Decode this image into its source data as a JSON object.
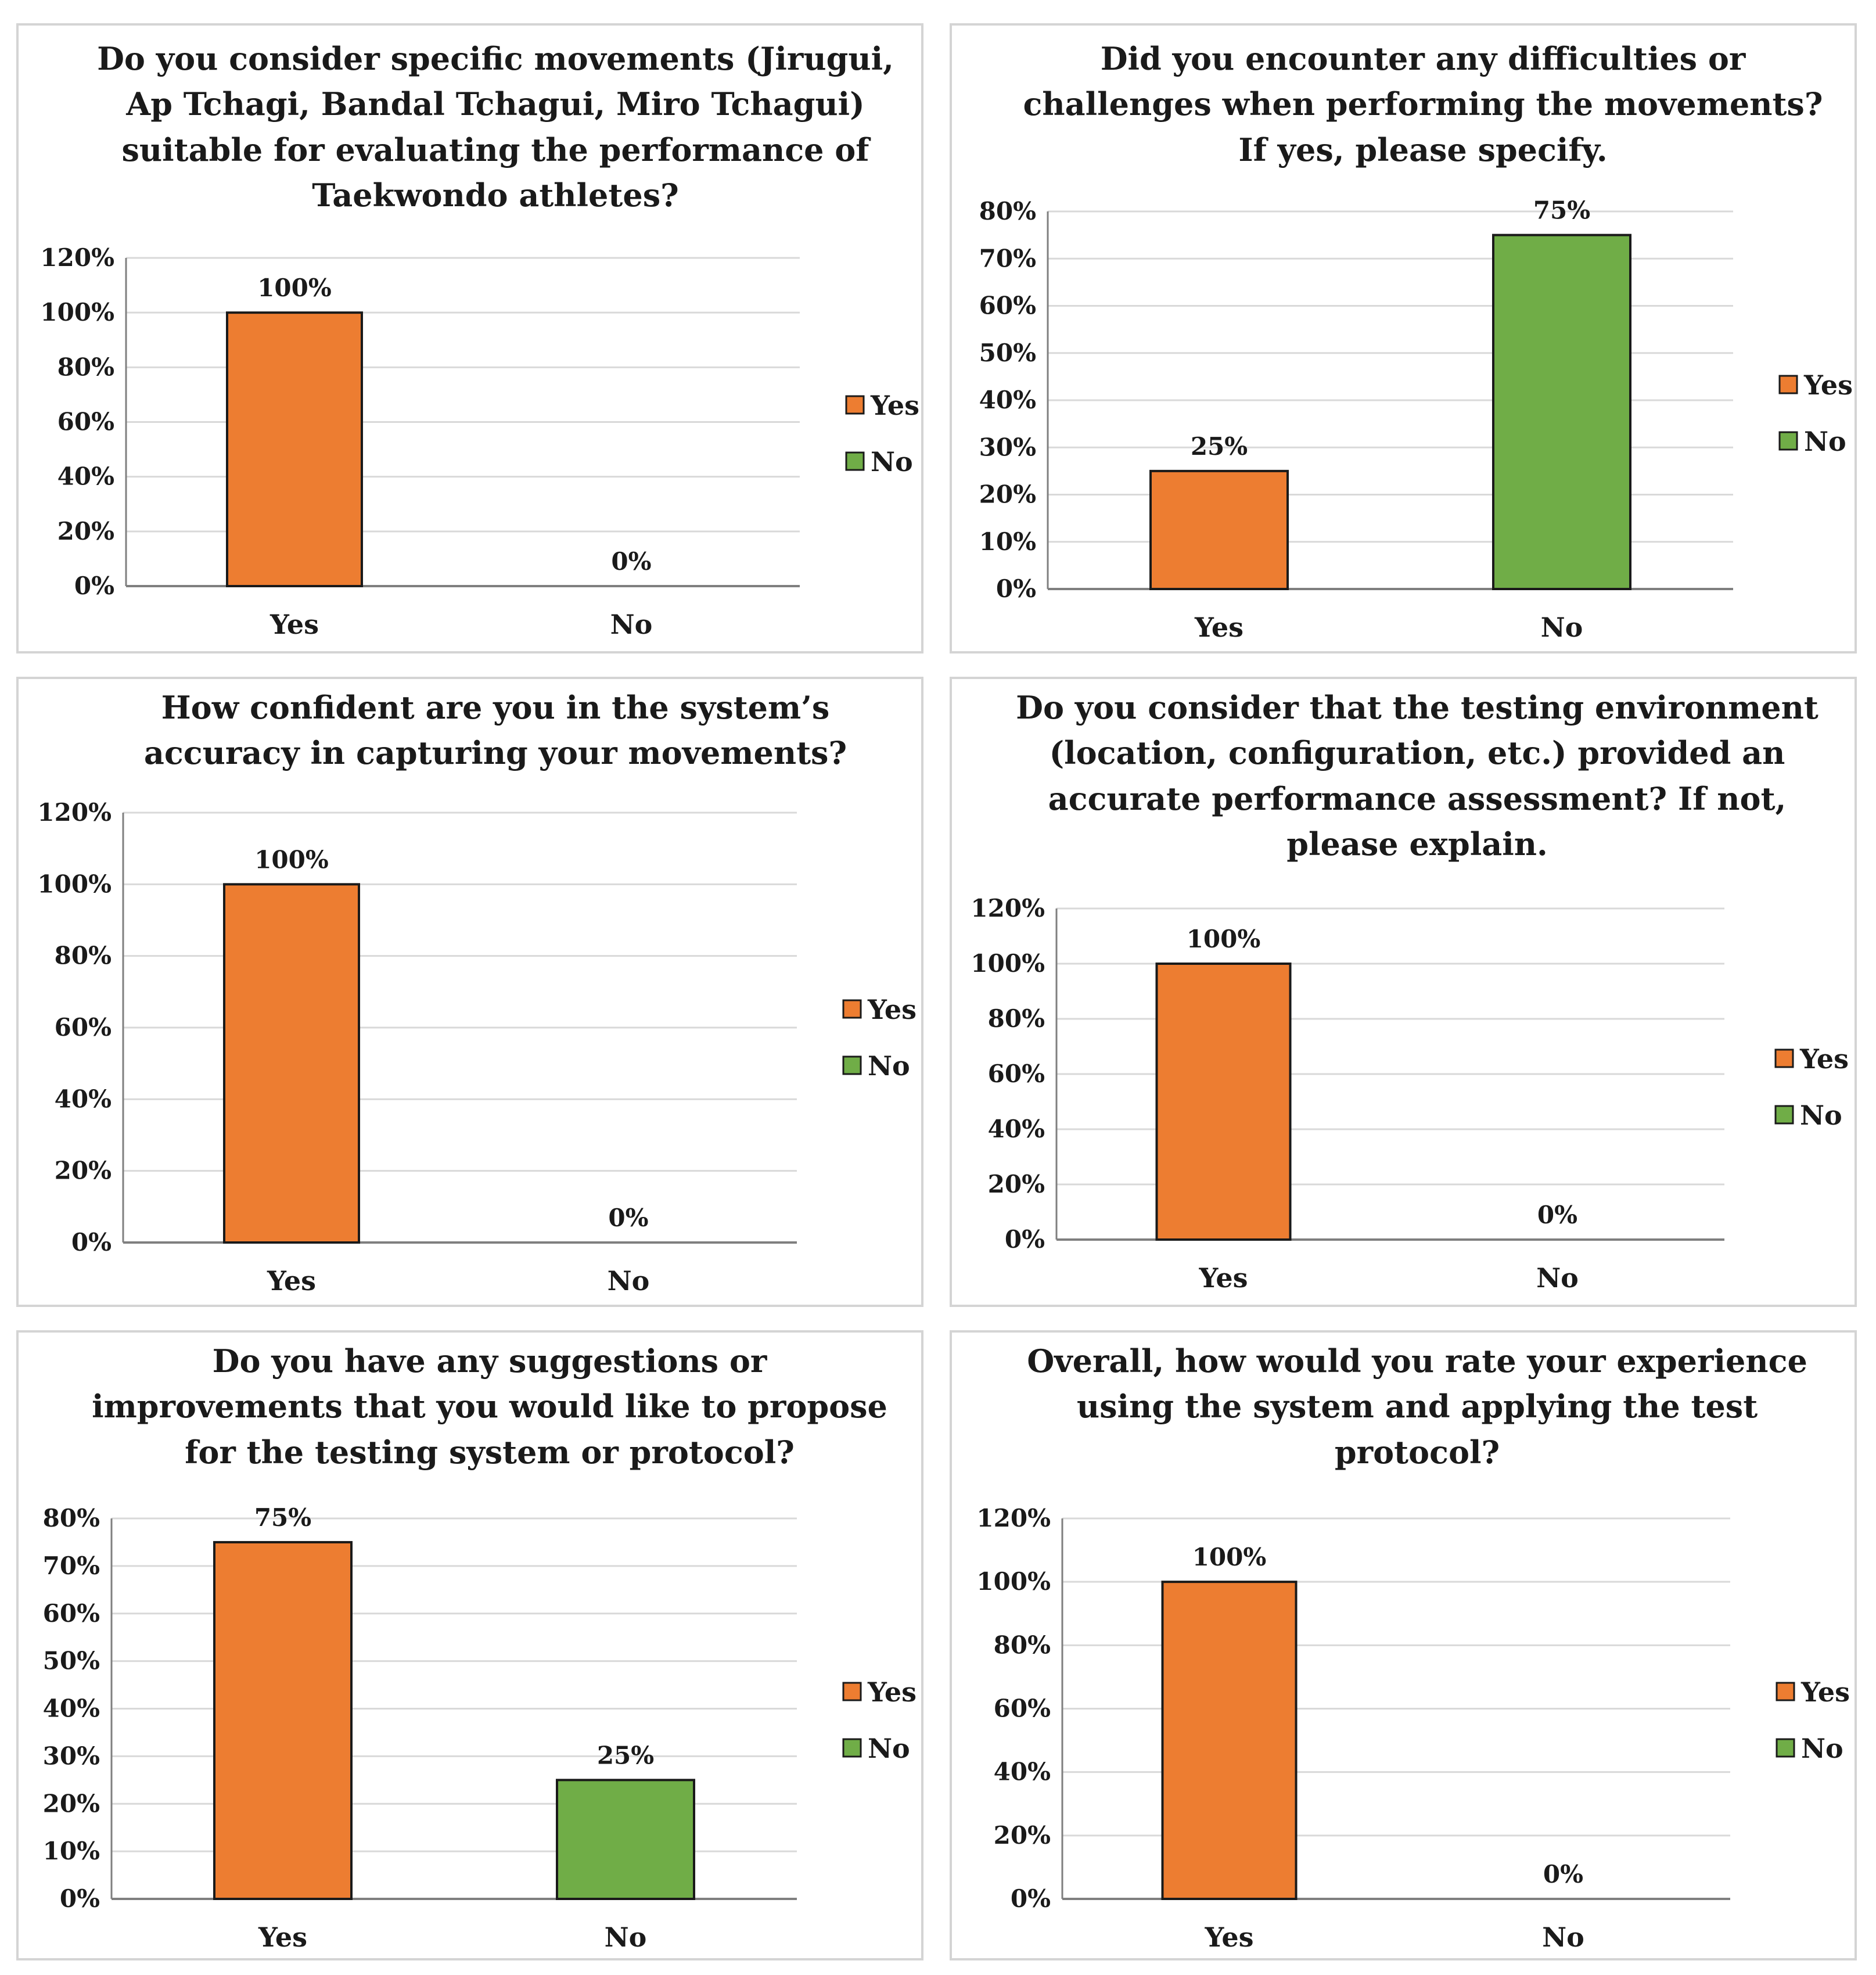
{
  "colors": {
    "yes": "#ED7D31",
    "no": "#70AD47",
    "grid": "#d9d9d9",
    "axis": "#7f7f7f",
    "outline": "#1a1a1a"
  },
  "chart_data": [
    {
      "type": "bar",
      "title": "Do you consider specific movements (Jirugui,\nAp Tchagi, Bandal Tchagui, Miro Tchagui)\nsuitable for evaluating the performance of\nTaekwondo athletes?",
      "categories": [
        "Yes",
        "No"
      ],
      "values": [
        100,
        0
      ],
      "value_labels": [
        "100%",
        "0%"
      ],
      "ylim": [
        0,
        120
      ],
      "yticks": [
        0,
        20,
        40,
        60,
        80,
        100,
        120
      ],
      "ytick_labels": [
        "0%",
        "20%",
        "40%",
        "60%",
        "80%",
        "100%",
        "120%"
      ],
      "legend": [
        "Yes",
        "No"
      ],
      "legend_position": "right",
      "grid": true
    },
    {
      "type": "bar",
      "title": "Did you encounter any difficulties or\nchallenges when performing the movements?\nIf yes, please specify.",
      "categories": [
        "Yes",
        "No"
      ],
      "values": [
        25,
        75
      ],
      "value_labels": [
        "25%",
        "75%"
      ],
      "ylim": [
        0,
        80
      ],
      "yticks": [
        0,
        10,
        20,
        30,
        40,
        50,
        60,
        70,
        80
      ],
      "ytick_labels": [
        "0%",
        "10%",
        "20%",
        "30%",
        "40%",
        "50%",
        "60%",
        "70%",
        "80%"
      ],
      "legend": [
        "Yes",
        "No"
      ],
      "legend_position": "right",
      "grid": true
    },
    {
      "type": "bar",
      "title": "How confident are you in the system’s\naccuracy in capturing your movements?",
      "categories": [
        "Yes",
        "No"
      ],
      "values": [
        100,
        0
      ],
      "value_labels": [
        "100%",
        "0%"
      ],
      "ylim": [
        0,
        120
      ],
      "yticks": [
        0,
        20,
        40,
        60,
        80,
        100,
        120
      ],
      "ytick_labels": [
        "0%",
        "20%",
        "40%",
        "60%",
        "80%",
        "100%",
        "120%"
      ],
      "legend": [
        "Yes",
        "No"
      ],
      "legend_position": "right",
      "grid": true
    },
    {
      "type": "bar",
      "title": "Do you consider that the testing environment\n(location, configuration, etc.) provided an\naccurate performance assessment? If not,\nplease explain.",
      "categories": [
        "Yes",
        "No"
      ],
      "values": [
        100,
        0
      ],
      "value_labels": [
        "100%",
        "0%"
      ],
      "ylim": [
        0,
        120
      ],
      "yticks": [
        0,
        20,
        40,
        60,
        80,
        100,
        120
      ],
      "ytick_labels": [
        "0%",
        "20%",
        "40%",
        "60%",
        "80%",
        "100%",
        "120%"
      ],
      "legend": [
        "Yes",
        "No"
      ],
      "legend_position": "right",
      "grid": true
    },
    {
      "type": "bar",
      "title": "Do you have any suggestions or\nimprovements that you would like to propose\nfor the testing system or protocol?",
      "categories": [
        "Yes",
        "No"
      ],
      "values": [
        75,
        25
      ],
      "value_labels": [
        "75%",
        "25%"
      ],
      "ylim": [
        0,
        80
      ],
      "yticks": [
        0,
        10,
        20,
        30,
        40,
        50,
        60,
        70,
        80
      ],
      "ytick_labels": [
        "0%",
        "10%",
        "20%",
        "30%",
        "40%",
        "50%",
        "60%",
        "70%",
        "80%"
      ],
      "legend": [
        "Yes",
        "No"
      ],
      "legend_position": "right",
      "grid": true
    },
    {
      "type": "bar",
      "title": "Overall, how would you rate your experience\nusing the system and applying the test\nprotocol?",
      "categories": [
        "Yes",
        "No"
      ],
      "values": [
        100,
        0
      ],
      "value_labels": [
        "100%",
        "0%"
      ],
      "ylim": [
        0,
        120
      ],
      "yticks": [
        0,
        20,
        40,
        60,
        80,
        100,
        120
      ],
      "ytick_labels": [
        "0%",
        "20%",
        "40%",
        "60%",
        "80%",
        "100%",
        "120%"
      ],
      "legend": [
        "Yes",
        "No"
      ],
      "legend_position": "right",
      "grid": true
    }
  ]
}
